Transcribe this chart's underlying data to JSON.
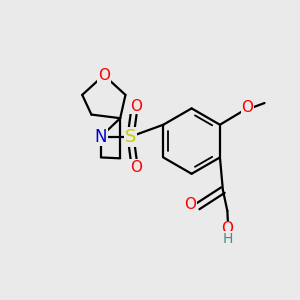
{
  "bg_color": "#eaeaea",
  "atom_colors": {
    "O": "#ff0000",
    "N": "#0000cd",
    "S": "#cccc00",
    "C": "#000000",
    "H": "#4a8a8a"
  },
  "bond_color": "#000000",
  "bond_width": 1.6,
  "font_size_atoms": 11,
  "font_size_H": 10,
  "figsize": [
    3.0,
    3.0
  ],
  "dpi": 100
}
